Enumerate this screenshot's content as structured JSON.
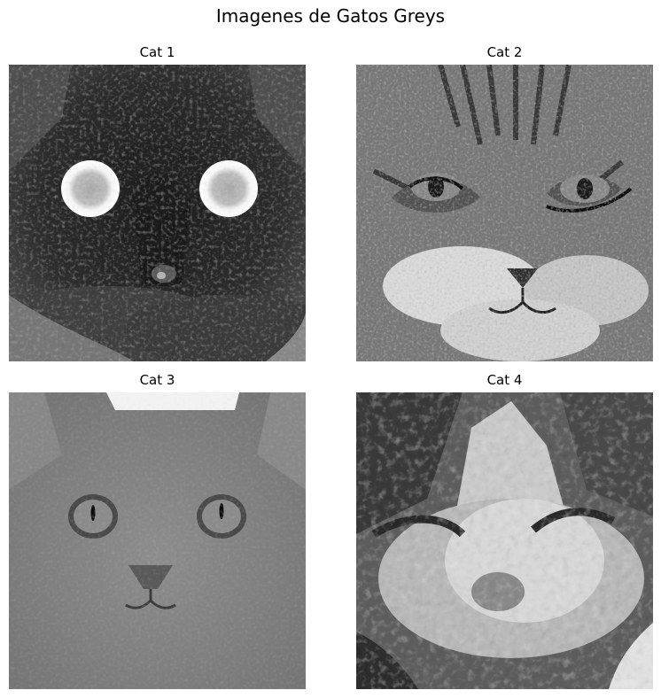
{
  "figure": {
    "suptitle": "Imagenes de Gatos Greys"
  },
  "panels": [
    {
      "title": "Cat 1",
      "image": "grayscale-cat-photo-dark-fur-glowing-eyes"
    },
    {
      "title": "Cat 2",
      "image": "grayscale-cat-photo-tabby"
    },
    {
      "title": "Cat 3",
      "image": "grayscale-cat-photo-light-fur"
    },
    {
      "title": "Cat 4",
      "image": "grayscale-cat-photo-fluffy-squinting"
    }
  ]
}
